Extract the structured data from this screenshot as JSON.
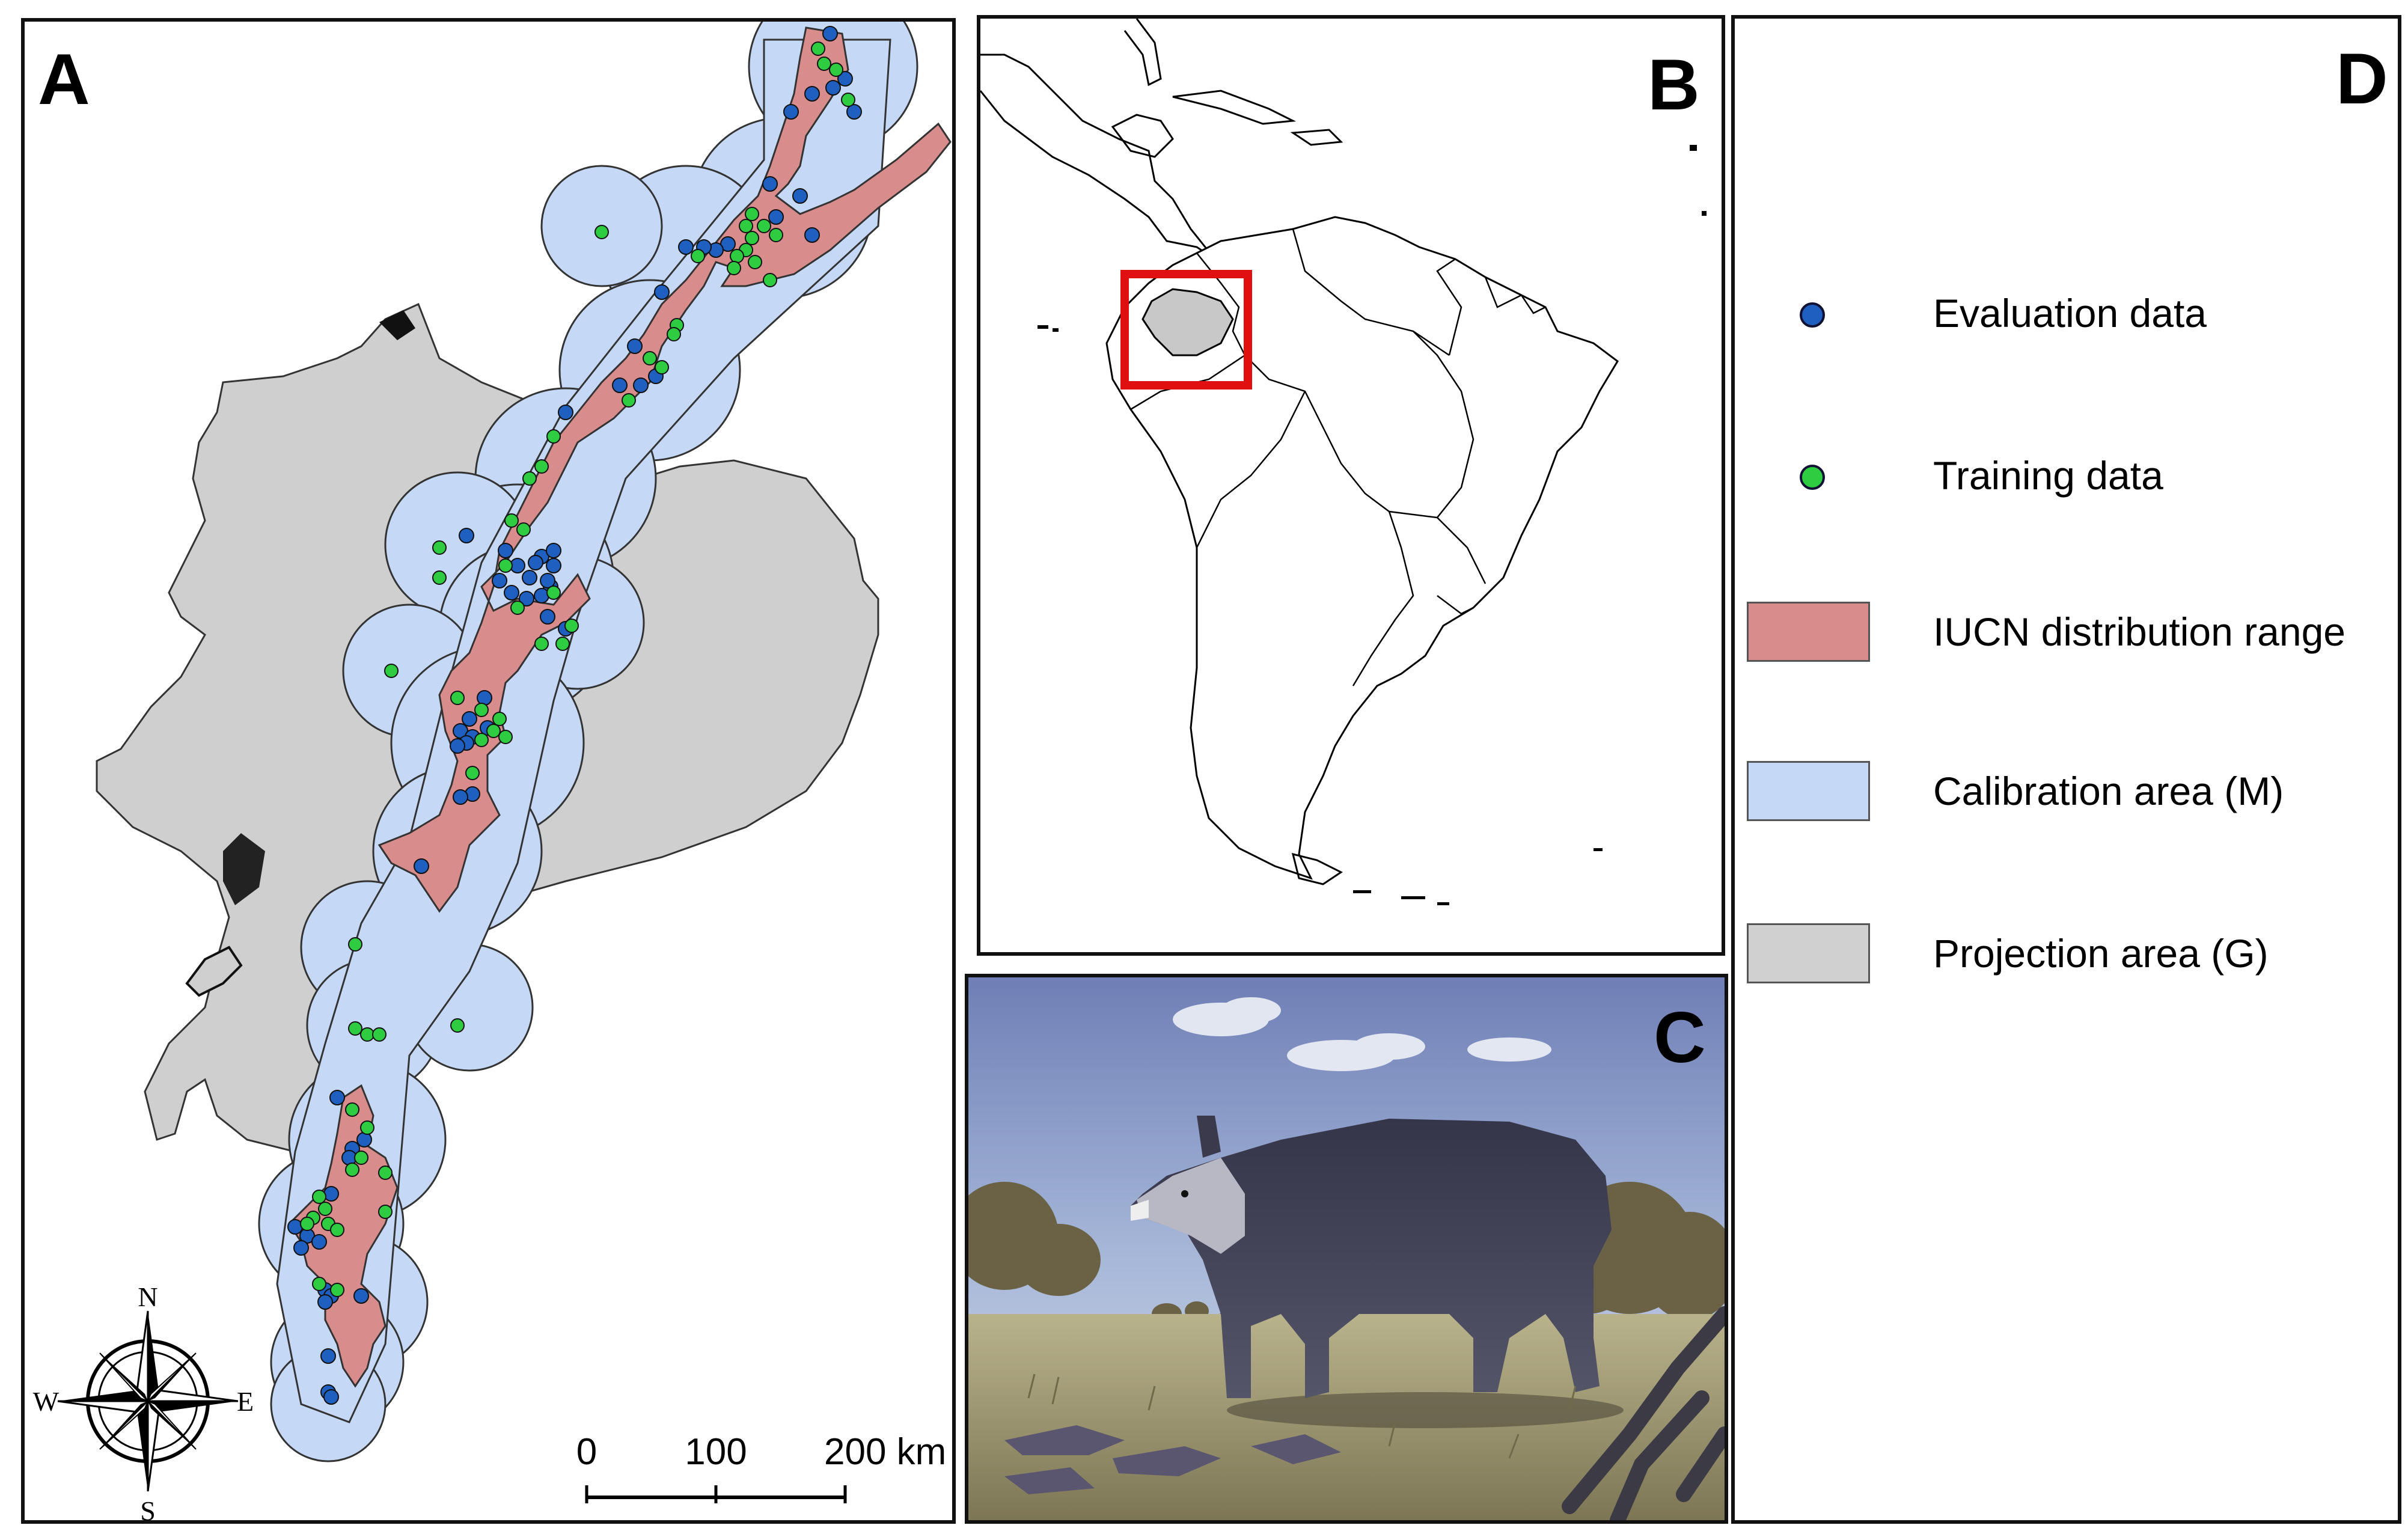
{
  "panels": {
    "a": {
      "letter": "A",
      "compass": {
        "n": "N",
        "e": "E",
        "s": "S",
        "w": "W"
      },
      "scale": {
        "t0": "0",
        "t1": "100",
        "t2": "200 km"
      }
    },
    "b": {
      "letter": "B"
    },
    "c": {
      "letter": "C"
    },
    "d": {
      "letter": "D"
    }
  },
  "legend": {
    "items": [
      {
        "label": "Evaluation data",
        "kind": "dot",
        "color": "#1f5fbf"
      },
      {
        "label": "Training data",
        "kind": "dot",
        "color": "#2ecc40"
      },
      {
        "label": "IUCN distribution range",
        "kind": "swatch",
        "color": "#d98c8c"
      },
      {
        "label": "Calibration area (M)",
        "kind": "swatch",
        "color": "#c5d9f7"
      },
      {
        "label": "Projection area (G)",
        "kind": "swatch",
        "color": "#d0d0d0"
      }
    ]
  },
  "colors": {
    "projection_area": "#cfcfcf",
    "calibration_area": "#c5d9f7",
    "iucn_range": "#d98c8c",
    "evaluation_points": "#1f5fbf",
    "training_points": "#2ecc40",
    "highlight_box": "#e01010"
  }
}
